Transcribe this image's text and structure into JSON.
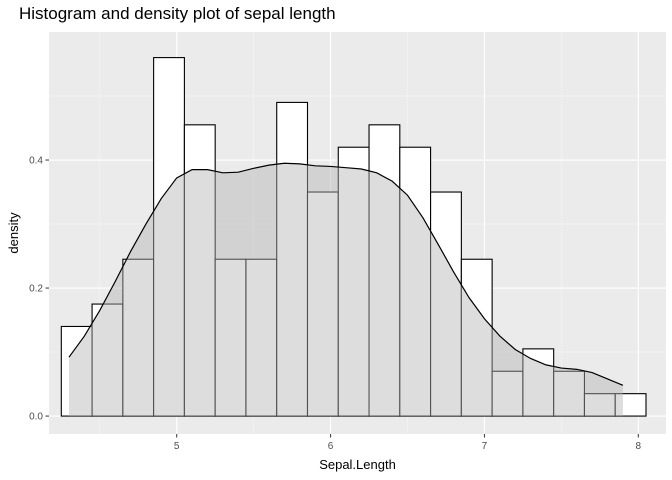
{
  "colors": {
    "panel_background": "#ebebeb",
    "grid_major": "#ffffff",
    "grid_minor": "#f5f5f5",
    "bar_fill": "#ffffff",
    "bar_outline": "#000000",
    "density_fill": "#b3b3b3",
    "density_fill_opacity": 0.45,
    "density_line": "#000000",
    "tick_text": "#4d4d4d"
  },
  "chart_data": {
    "type": "histogram",
    "title": "Histogram and density plot of sepal length",
    "xlabel": "Sepal.Length",
    "ylabel": "density",
    "xlim": [
      4.17,
      8.18
    ],
    "ylim": [
      -0.028,
      0.6
    ],
    "grid": true,
    "legend": "none",
    "x_ticks": [
      5,
      6,
      7,
      8
    ],
    "x_tick_labels": [
      "5",
      "6",
      "7",
      "8"
    ],
    "y_ticks": [
      0.0,
      0.2,
      0.4
    ],
    "y_tick_labels": [
      "0.0",
      "0.2",
      "0.4"
    ],
    "bins": [
      {
        "x0": 4.25,
        "x1": 4.45,
        "density": 0.14
      },
      {
        "x0": 4.45,
        "x1": 4.65,
        "density": 0.175
      },
      {
        "x0": 4.65,
        "x1": 4.85,
        "density": 0.245
      },
      {
        "x0": 4.85,
        "x1": 5.05,
        "density": 0.56
      },
      {
        "x0": 5.05,
        "x1": 5.25,
        "density": 0.455
      },
      {
        "x0": 5.25,
        "x1": 5.45,
        "density": 0.245
      },
      {
        "x0": 5.45,
        "x1": 5.65,
        "density": 0.245
      },
      {
        "x0": 5.65,
        "x1": 5.85,
        "density": 0.49
      },
      {
        "x0": 5.85,
        "x1": 6.05,
        "density": 0.35
      },
      {
        "x0": 6.05,
        "x1": 6.25,
        "density": 0.42
      },
      {
        "x0": 6.25,
        "x1": 6.45,
        "density": 0.455
      },
      {
        "x0": 6.45,
        "x1": 6.65,
        "density": 0.42
      },
      {
        "x0": 6.65,
        "x1": 6.85,
        "density": 0.35
      },
      {
        "x0": 6.85,
        "x1": 7.05,
        "density": 0.245
      },
      {
        "x0": 7.05,
        "x1": 7.25,
        "density": 0.07
      },
      {
        "x0": 7.25,
        "x1": 7.45,
        "density": 0.105
      },
      {
        "x0": 7.45,
        "x1": 7.65,
        "density": 0.07
      },
      {
        "x0": 7.65,
        "x1": 7.85,
        "density": 0.035
      },
      {
        "x0": 7.85,
        "x1": 8.05,
        "density": 0.035
      }
    ],
    "density_curve": {
      "x": [
        4.3,
        4.4,
        4.5,
        4.6,
        4.7,
        4.8,
        4.9,
        5.0,
        5.1,
        5.2,
        5.3,
        5.4,
        5.5,
        5.6,
        5.7,
        5.8,
        5.9,
        6.0,
        6.1,
        6.2,
        6.3,
        6.4,
        6.5,
        6.6,
        6.7,
        6.8,
        6.9,
        7.0,
        7.1,
        7.2,
        7.3,
        7.4,
        7.5,
        7.6,
        7.7,
        7.8,
        7.9
      ],
      "y": [
        0.092,
        0.125,
        0.165,
        0.21,
        0.257,
        0.3,
        0.34,
        0.372,
        0.385,
        0.385,
        0.38,
        0.381,
        0.387,
        0.392,
        0.395,
        0.394,
        0.391,
        0.39,
        0.388,
        0.386,
        0.38,
        0.367,
        0.345,
        0.31,
        0.268,
        0.225,
        0.185,
        0.152,
        0.125,
        0.104,
        0.09,
        0.08,
        0.075,
        0.073,
        0.068,
        0.058,
        0.048
      ]
    }
  }
}
